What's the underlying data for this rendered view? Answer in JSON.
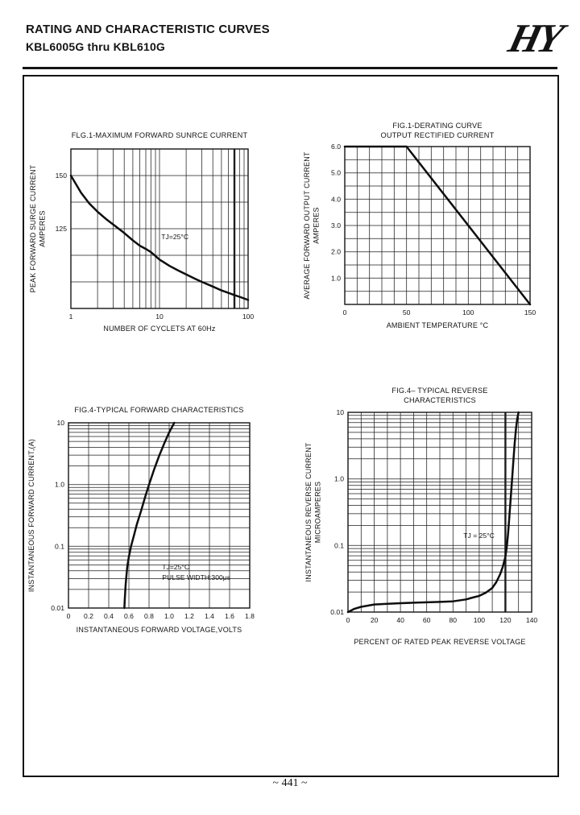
{
  "page": {
    "header": {
      "title": "RATING AND CHARACTERISTIC CURVES",
      "subtitle": "KBL6005G thru KBL610G",
      "logo_text": "HY"
    },
    "footer": {
      "page_number": "~ 441 ~"
    },
    "colors": {
      "ink": "#141414",
      "paper": "#ffffff"
    }
  },
  "chart_data": [
    {
      "type": "line",
      "title_lines": [
        "FLG.1-MAXIMUM FORWARD SUNRCE CURRENT"
      ],
      "xlabel": "NUMBER OF CYCLETS AT 60Hz",
      "ylabel_lines": [
        "PEAK FORWARD SURGE CURRENT",
        "AMPERES"
      ],
      "grid": true,
      "x": {
        "scale": "log",
        "min": 1,
        "max": 100,
        "bold_gridlines": [
          70
        ],
        "ticks": [
          {
            "v": 1,
            "label": "1"
          },
          {
            "v": 10,
            "label": "10"
          },
          {
            "v": 100,
            "label": "100"
          }
        ]
      },
      "y": {
        "scale": "linear",
        "min": 87.5,
        "max": 162.5,
        "step": 12.5,
        "ticks": [
          {
            "v": 150,
            "label": "150"
          },
          {
            "v": 125,
            "label": "125"
          }
        ]
      },
      "annotations": [
        {
          "x": 10.5,
          "y": 120,
          "lines": [
            "TJ=25°C"
          ]
        }
      ],
      "series": [
        {
          "name": "peak-forward-surge-current",
          "points": [
            [
              1,
              150
            ],
            [
              1.3,
              142
            ],
            [
              1.6,
              137
            ],
            [
              2,
              133
            ],
            [
              2.5,
              129.5
            ],
            [
              3,
              127
            ],
            [
              4,
              123
            ],
            [
              5,
              119.5
            ],
            [
              6,
              117
            ],
            [
              7,
              115.5
            ],
            [
              8,
              114
            ],
            [
              10,
              110.5
            ],
            [
              13,
              107.5
            ],
            [
              16,
              105.5
            ],
            [
              20,
              103.5
            ],
            [
              25,
              101.5
            ],
            [
              30,
              100
            ],
            [
              40,
              97.8
            ],
            [
              50,
              96
            ],
            [
              60,
              94.8
            ],
            [
              70,
              93.8
            ],
            [
              80,
              93
            ],
            [
              100,
              91.5
            ]
          ]
        }
      ]
    },
    {
      "type": "line",
      "title_lines": [
        "FIG.1-DERATING CURVE",
        "OUTPUT RECTIFIED CURRENT"
      ],
      "xlabel": "AMBIENT TEMPERATURE °C",
      "ylabel_lines": [
        "AVERAGE FORWARD OUTPUT CURRENT",
        "AMPERES"
      ],
      "grid": true,
      "x": {
        "scale": "linear",
        "min": 0,
        "max": 150,
        "step": 10,
        "ticks": [
          {
            "v": 0,
            "label": "0"
          },
          {
            "v": 50,
            "label": "50"
          },
          {
            "v": 100,
            "label": "100"
          },
          {
            "v": 150,
            "label": "150"
          }
        ]
      },
      "y": {
        "scale": "linear",
        "min": 0,
        "max": 6,
        "step": 0.5,
        "ticks": [
          {
            "v": 1,
            "label": "1.0"
          },
          {
            "v": 2,
            "label": "2.0"
          },
          {
            "v": 3,
            "label": "3.0"
          },
          {
            "v": 4,
            "label": "4.0"
          },
          {
            "v": 5,
            "label": "5.0"
          },
          {
            "v": 6,
            "label": "6.0"
          }
        ]
      },
      "annotations": [],
      "series": [
        {
          "name": "average-forward-output-current",
          "points": [
            [
              0,
              6
            ],
            [
              50,
              6
            ],
            [
              150,
              0
            ]
          ]
        }
      ]
    },
    {
      "type": "line",
      "title_lines": [
        "FIG.4-TYPICAL FORWARD CHARACTERISTICS"
      ],
      "xlabel": "INSTANTANEOUS FORWARD VOLTAGE,VOLTS",
      "ylabel_lines": [
        "INSTANTANEOUS FORWARD CURRENT,(A)"
      ],
      "grid": true,
      "x": {
        "scale": "linear",
        "min": 0,
        "max": 1.8,
        "step": 0.2,
        "ticks": [
          {
            "v": 0,
            "label": "0"
          },
          {
            "v": 0.2,
            "label": "0.2"
          },
          {
            "v": 0.4,
            "label": "0.4"
          },
          {
            "v": 0.6,
            "label": "0.6"
          },
          {
            "v": 0.8,
            "label": "0.8"
          },
          {
            "v": 1.0,
            "label": "1.0"
          },
          {
            "v": 1.2,
            "label": "1.2"
          },
          {
            "v": 1.4,
            "label": "1.4"
          },
          {
            "v": 1.6,
            "label": "1.6"
          },
          {
            "v": 1.8,
            "label": "1.8"
          }
        ]
      },
      "y": {
        "scale": "log",
        "min": 0.01,
        "max": 10,
        "ticks": [
          {
            "v": 10,
            "label": "10"
          },
          {
            "v": 1,
            "label": "1.0"
          },
          {
            "v": 0.1,
            "label": "0.1"
          },
          {
            "v": 0.01,
            "label": "0.01"
          }
        ]
      },
      "annotations": [
        {
          "x": 0.93,
          "y": 0.042,
          "lines": [
            "TJ=25°C",
            "PULSE WIDTH:300μs"
          ]
        }
      ],
      "series": [
        {
          "name": "instantaneous-forward-current",
          "points": [
            [
              0.555,
              0.01
            ],
            [
              0.558,
              0.013
            ],
            [
              0.562,
              0.017
            ],
            [
              0.568,
              0.024
            ],
            [
              0.575,
              0.033
            ],
            [
              0.585,
              0.048
            ],
            [
              0.6,
              0.068
            ],
            [
              0.62,
              0.098
            ],
            [
              0.65,
              0.15
            ],
            [
              0.68,
              0.23
            ],
            [
              0.72,
              0.37
            ],
            [
              0.76,
              0.62
            ],
            [
              0.8,
              1.0
            ],
            [
              0.85,
              1.75
            ],
            [
              0.9,
              2.9
            ],
            [
              0.95,
              4.6
            ],
            [
              1.0,
              7.0
            ],
            [
              1.05,
              10
            ]
          ]
        }
      ]
    },
    {
      "type": "line",
      "title_lines": [
        "FIG.4– TYPICAL REVERSE",
        "CHARACTERISTICS"
      ],
      "xlabel": "PERCENT OF RATED PEAK REVERSE VOLTAGE",
      "ylabel_lines": [
        "INSTANTANEOUS REVERSE CURRENT",
        "MICROAMPERES"
      ],
      "grid": true,
      "x": {
        "scale": "linear",
        "min": 0,
        "max": 140,
        "step": 10,
        "bold_gridlines": [
          120
        ],
        "ticks": [
          {
            "v": 0,
            "label": "0"
          },
          {
            "v": 20,
            "label": "20"
          },
          {
            "v": 40,
            "label": "40"
          },
          {
            "v": 60,
            "label": "60"
          },
          {
            "v": 80,
            "label": "80"
          },
          {
            "v": 100,
            "label": "100"
          },
          {
            "v": 120,
            "label": "120"
          },
          {
            "v": 140,
            "label": "140"
          }
        ]
      },
      "y": {
        "scale": "log",
        "min": 0.01,
        "max": 10,
        "ticks": [
          {
            "v": 10,
            "label": "10"
          },
          {
            "v": 1,
            "label": "1.0"
          },
          {
            "v": 0.1,
            "label": "0.1"
          },
          {
            "v": 0.01,
            "label": "0.01"
          }
        ]
      },
      "annotations": [
        {
          "x": 88,
          "y": 0.13,
          "lines": [
            "TJ = 25°C"
          ]
        }
      ],
      "series": [
        {
          "name": "instantaneous-reverse-current",
          "points": [
            [
              0,
              0.01
            ],
            [
              5,
              0.0112
            ],
            [
              10,
              0.012
            ],
            [
              20,
              0.013
            ],
            [
              30,
              0.0133
            ],
            [
              40,
              0.0136
            ],
            [
              50,
              0.0138
            ],
            [
              60,
              0.014
            ],
            [
              70,
              0.0142
            ],
            [
              80,
              0.0145
            ],
            [
              90,
              0.0155
            ],
            [
              95,
              0.0165
            ],
            [
              100,
              0.0175
            ],
            [
              105,
              0.0195
            ],
            [
              110,
              0.023
            ],
            [
              113,
              0.028
            ],
            [
              116,
              0.037
            ],
            [
              118,
              0.048
            ],
            [
              120,
              0.068
            ],
            [
              121,
              0.095
            ],
            [
              122,
              0.15
            ],
            [
              123,
              0.27
            ],
            [
              124,
              0.5
            ],
            [
              125,
              0.95
            ],
            [
              126,
              1.8
            ],
            [
              127,
              3.3
            ],
            [
              128,
              5.6
            ],
            [
              129,
              8
            ],
            [
              130,
              10
            ]
          ]
        }
      ]
    }
  ]
}
